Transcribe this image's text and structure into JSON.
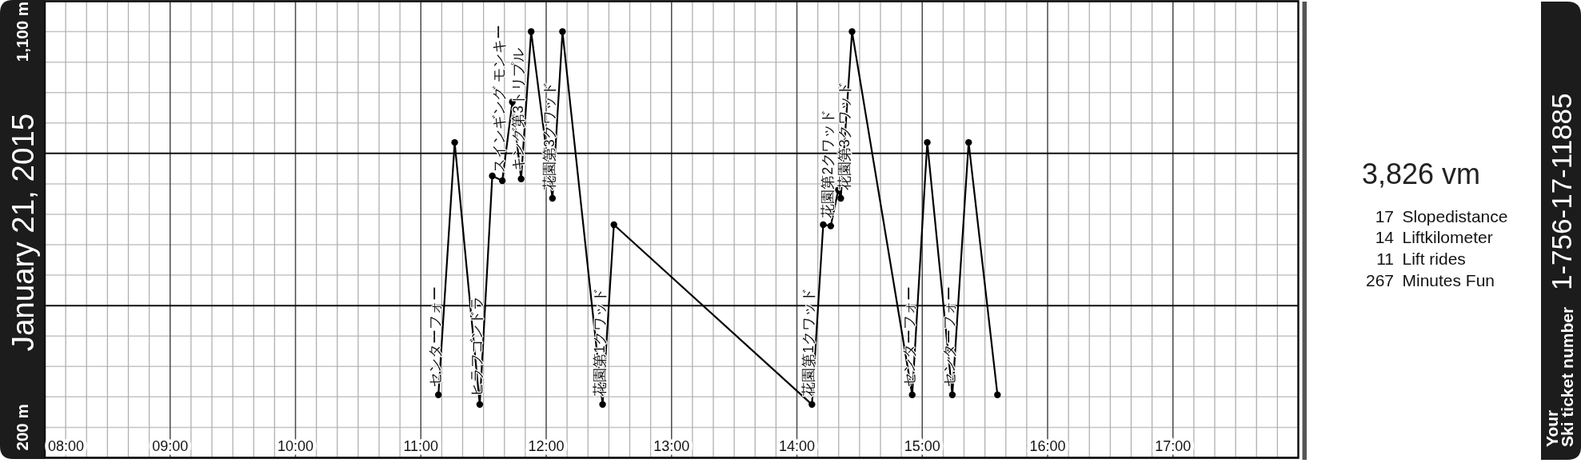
{
  "chart_data": {
    "type": "line",
    "title": "January 21, 2015",
    "color": "#000000",
    "marker": "circle",
    "line_style": "solid",
    "grid": true,
    "x": [
      11.14,
      11.27,
      11.47,
      11.57,
      11.65,
      11.73,
      11.8,
      11.88,
      12.05,
      12.13,
      12.45,
      12.54,
      14.12,
      14.21,
      14.27,
      14.33,
      14.35,
      14.44,
      14.92,
      15.04,
      15.24,
      15.37,
      15.6
    ],
    "values": [
      274,
      848,
      252,
      772,
      761,
      940,
      765,
      1100,
      721,
      1100,
      252,
      661,
      252,
      661,
      658,
      740,
      721,
      1100,
      274,
      848,
      274,
      848,
      274
    ],
    "xlim": [
      8,
      18
    ],
    "ylim": [
      130.77,
      1169.23
    ],
    "xticks": [
      {
        "value": 8,
        "label": "08:00"
      },
      {
        "value": 8.1667,
        "label": null
      },
      {
        "value": 8.3333,
        "label": null
      },
      {
        "value": 8.5,
        "label": null
      },
      {
        "value": 8.6667,
        "label": null
      },
      {
        "value": 8.8333,
        "label": null
      },
      {
        "value": 9,
        "label": "09:00"
      },
      {
        "value": 9.1667,
        "label": null
      },
      {
        "value": 9.3333,
        "label": null
      },
      {
        "value": 9.5,
        "label": null
      },
      {
        "value": 9.6667,
        "label": null
      },
      {
        "value": 9.8333,
        "label": null
      },
      {
        "value": 10,
        "label": "10:00"
      },
      {
        "value": 10.1667,
        "label": null
      },
      {
        "value": 10.3333,
        "label": null
      },
      {
        "value": 10.5,
        "label": null
      },
      {
        "value": 10.6667,
        "label": null
      },
      {
        "value": 10.8333,
        "label": null
      },
      {
        "value": 11,
        "label": "11:00"
      },
      {
        "value": 11.1667,
        "label": null
      },
      {
        "value": 11.3333,
        "label": null
      },
      {
        "value": 11.5,
        "label": null
      },
      {
        "value": 11.6667,
        "label": null
      },
      {
        "value": 11.8333,
        "label": null
      },
      {
        "value": 12,
        "label": "12:00"
      },
      {
        "value": 12.1667,
        "label": null
      },
      {
        "value": 12.3333,
        "label": null
      },
      {
        "value": 12.5,
        "label": null
      },
      {
        "value": 12.6667,
        "label": null
      },
      {
        "value": 12.8333,
        "label": null
      },
      {
        "value": 13,
        "label": "13:00"
      },
      {
        "value": 13.1667,
        "label": null
      },
      {
        "value": 13.3333,
        "label": null
      },
      {
        "value": 13.5,
        "label": null
      },
      {
        "value": 13.6667,
        "label": null
      },
      {
        "value": 13.8333,
        "label": null
      },
      {
        "value": 14,
        "label": "14:00"
      },
      {
        "value": 14.1667,
        "label": null
      },
      {
        "value": 14.3333,
        "label": null
      },
      {
        "value": 14.5,
        "label": null
      },
      {
        "value": 14.6667,
        "label": null
      },
      {
        "value": 14.8333,
        "label": null
      },
      {
        "value": 15,
        "label": "15:00"
      },
      {
        "value": 15.1667,
        "label": null
      },
      {
        "value": 15.3333,
        "label": null
      },
      {
        "value": 15.5,
        "label": null
      },
      {
        "value": 15.6667,
        "label": null
      },
      {
        "value": 15.8333,
        "label": null
      },
      {
        "value": 16,
        "label": "16:00"
      },
      {
        "value": 16.1667,
        "label": null
      },
      {
        "value": 16.3333,
        "label": null
      },
      {
        "value": 16.5,
        "label": null
      },
      {
        "value": 16.6667,
        "label": null
      },
      {
        "value": 16.8333,
        "label": null
      },
      {
        "value": 17,
        "label": "17:00"
      },
      {
        "value": 17.1667,
        "label": null
      },
      {
        "value": 17.3333,
        "label": null
      },
      {
        "value": 17.5,
        "label": null
      },
      {
        "value": 17.6667,
        "label": null
      },
      {
        "value": 17.8333,
        "label": null
      }
    ],
    "yticks": [
      {
        "value": 130.77,
        "label": null
      },
      {
        "value": 200,
        "label": "200 m"
      },
      {
        "value": 269.23,
        "label": null
      },
      {
        "value": 338.46,
        "label": null
      },
      {
        "value": 407.69,
        "label": null
      },
      {
        "value": 476.92,
        "label": null
      },
      {
        "value": 546.15,
        "label": null
      },
      {
        "value": 615.38,
        "label": null
      },
      {
        "value": 684.62,
        "label": null
      },
      {
        "value": 753.85,
        "label": null
      },
      {
        "value": 823.08,
        "label": null
      },
      {
        "value": 892.31,
        "label": null
      },
      {
        "value": 961.54,
        "label": null
      },
      {
        "value": 1030.77,
        "label": null
      },
      {
        "value": 1100,
        "label": "1,100 m"
      },
      {
        "value": 1169.23,
        "label": null
      }
    ],
    "annotations": [
      {
        "text": "センターフォー",
        "x": 11.14,
        "y": 274
      },
      {
        "text": "ヒラフゴンドラ",
        "x": 11.47,
        "y": 252
      },
      {
        "text": "スインギング モンキー",
        "x": 11.65,
        "y": 761
      },
      {
        "text": "キング第3トリプル",
        "x": 11.8,
        "y": 765
      },
      {
        "text": "花園第3クワッド",
        "x": 12.05,
        "y": 721
      },
      {
        "text": "花園第1クワッド",
        "x": 12.45,
        "y": 252
      },
      {
        "text": "花園第1クワッド",
        "x": 14.12,
        "y": 252
      },
      {
        "text": "花園第2クワッド",
        "x": 14.27,
        "y": 658
      },
      {
        "text": "花園第3クワッド",
        "x": 14.35,
        "y": 721
      },
      {
        "text": "センターフォー",
        "x": 14.92,
        "y": 274
      },
      {
        "text": "センターフォー",
        "x": 15.24,
        "y": 274
      },
      "3,826 vm",
      "17",
      "Slopedistance",
      "14",
      "Liftkilometer",
      "11",
      "Lift rides",
      "267",
      "Minutes Fun",
      "1-756-17-11885",
      "Your",
      "Ski ticket number"
    ]
  }
}
